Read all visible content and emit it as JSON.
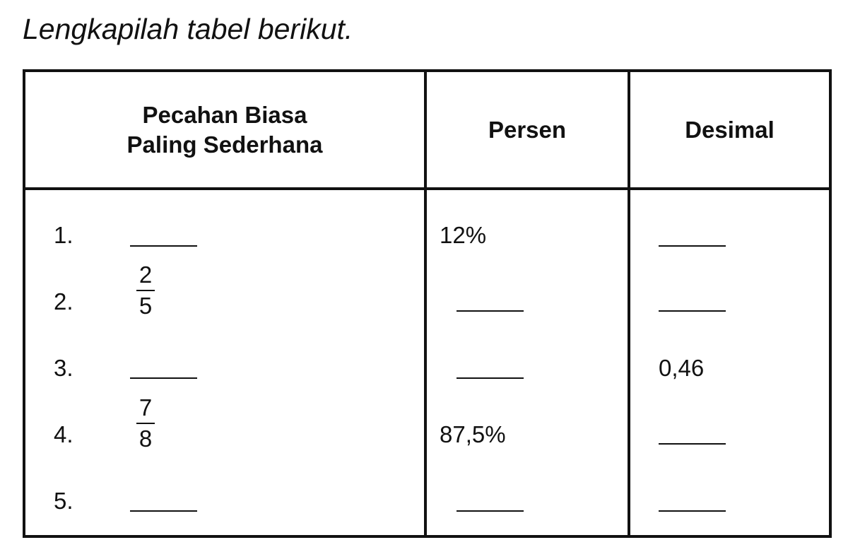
{
  "title": "Lengkapilah tabel berikut.",
  "headers": {
    "fraction_line1": "Pecahan Biasa",
    "fraction_line2": "Paling Sederhana",
    "percent": "Persen",
    "decimal": "Desimal"
  },
  "rows": [
    {
      "number": "1.",
      "fraction": null,
      "percent": "12%",
      "decimal": null
    },
    {
      "number": "2.",
      "fraction": {
        "numerator": "2",
        "denominator": "5"
      },
      "percent": null,
      "decimal": null
    },
    {
      "number": "3.",
      "fraction": null,
      "percent": null,
      "decimal": "0,46"
    },
    {
      "number": "4.",
      "fraction": {
        "numerator": "7",
        "denominator": "8"
      },
      "percent": "87,5%",
      "decimal": null
    },
    {
      "number": "5.",
      "fraction": null,
      "percent": null,
      "decimal": null
    }
  ]
}
